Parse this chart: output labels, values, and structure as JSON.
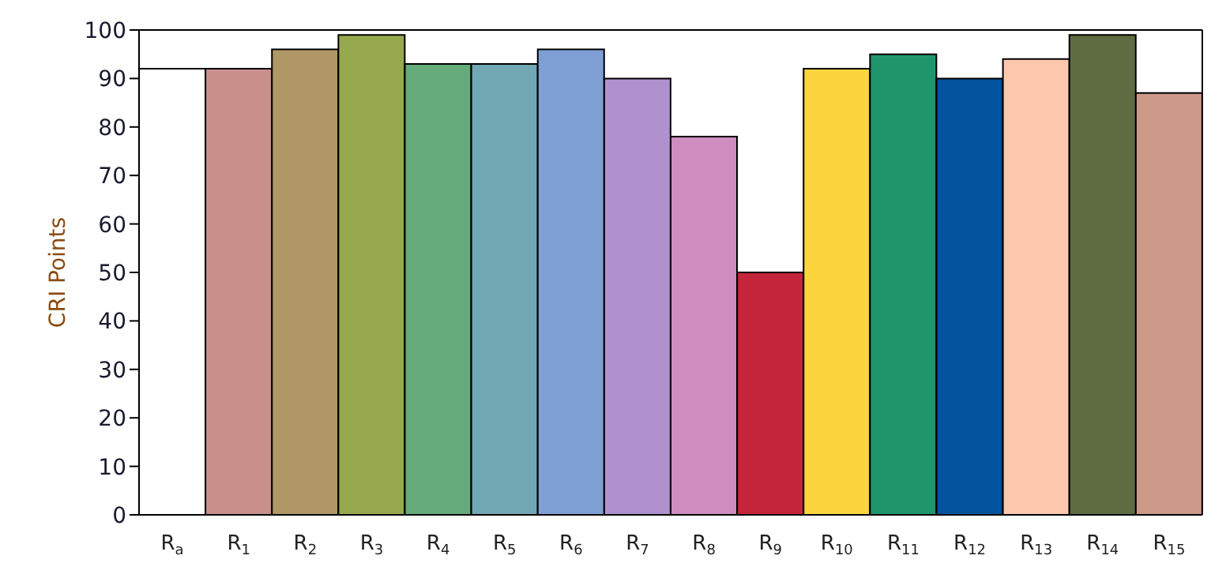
{
  "chart_data": {
    "type": "bar",
    "ylabel": "CRI Points",
    "categories": [
      "R$_{a}$",
      "R$_{1}$",
      "R$_{2}$",
      "R$_{3}$",
      "R$_{4}$",
      "R$_{5}$",
      "R$_{6}$",
      "R$_{7}$",
      "R$_{8}$",
      "R$_{9}$",
      "R$_{10}$",
      "R$_{11}$",
      "R$_{12}$",
      "R$_{13}$",
      "R$_{14}$",
      "R$_{15}$"
    ],
    "values": [
      92,
      92,
      96,
      99,
      93,
      93,
      96,
      90,
      78,
      50,
      92,
      95,
      90,
      94,
      99,
      87
    ],
    "colors": [
      "#ffffff",
      "#c98f8b",
      "#b09866",
      "#97a94f",
      "#65ab7b",
      "#72a8b3",
      "#7e9fd4",
      "#b090cd",
      "#cd8dbe",
      "#c4253a",
      "#fbd43e",
      "#1f956b",
      "#00539c",
      "#fec8ae",
      "#5f6c41",
      "#cc9988"
    ],
    "ylim": [
      0,
      100
    ],
    "yticks": [
      0,
      10,
      20,
      30,
      40,
      50,
      60,
      70,
      80,
      90,
      100
    ],
    "grid": false,
    "legend": false
  }
}
